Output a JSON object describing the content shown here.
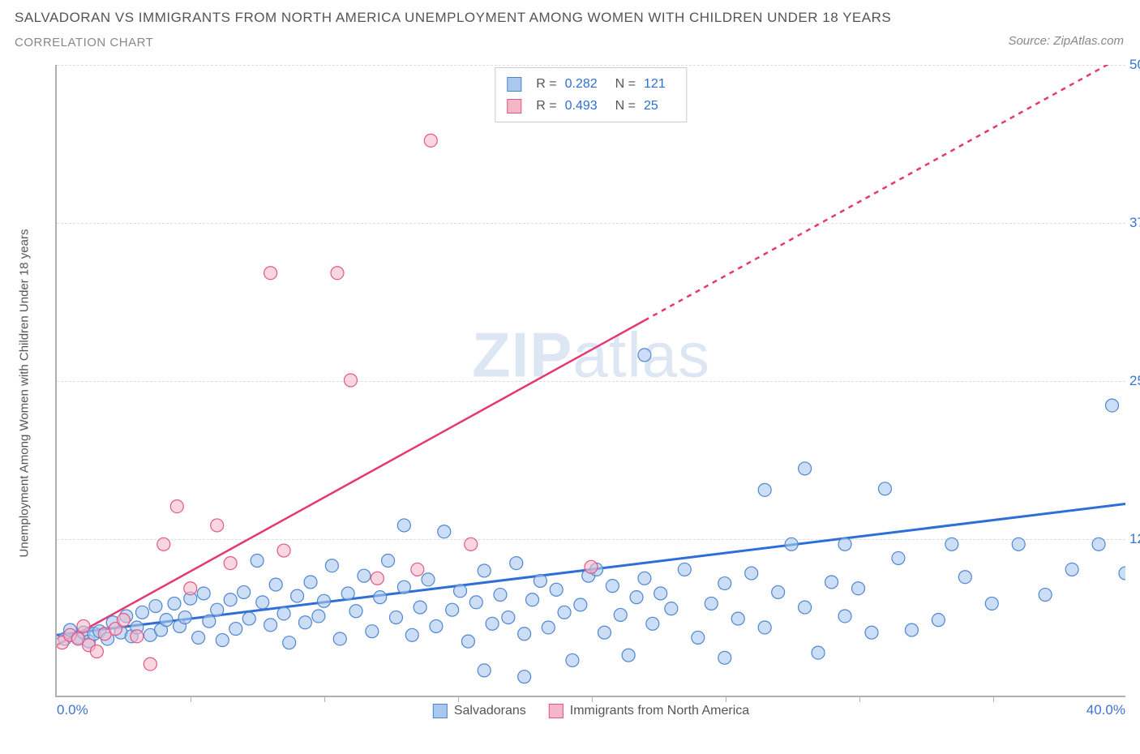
{
  "header": {
    "title": "SALVADORAN VS IMMIGRANTS FROM NORTH AMERICA UNEMPLOYMENT AMONG WOMEN WITH CHILDREN UNDER 18 YEARS",
    "subtitle": "CORRELATION CHART",
    "source": "Source: ZipAtlas.com"
  },
  "chart": {
    "type": "scatter",
    "y_axis_label": "Unemployment Among Women with Children Under 18 years",
    "x_min": 0,
    "x_max": 40,
    "y_min": 0,
    "y_max": 50,
    "x_min_label": "0.0%",
    "x_max_label": "40.0%",
    "y_ticks": [
      {
        "val": 12.5,
        "label": "12.5%"
      },
      {
        "val": 25.0,
        "label": "25.0%"
      },
      {
        "val": 37.5,
        "label": "37.5%"
      },
      {
        "val": 50.0,
        "label": "50.0%"
      }
    ],
    "x_tick_vals": [
      5,
      10,
      15,
      20,
      25,
      30,
      35
    ],
    "grid_color": "#dddddd",
    "axis_color": "#b0b0b0",
    "background_color": "#ffffff",
    "marker_radius": 8,
    "marker_stroke_width": 1.2,
    "series": [
      {
        "name": "Salvadorans",
        "fill": "#a9c8ee",
        "stroke": "#4f86d0",
        "fill_opacity": 0.6,
        "regression": {
          "slope": 0.26,
          "intercept": 4.8,
          "color": "#2d6fd6",
          "width": 3,
          "dash_after_x": 40
        },
        "R": "0.282",
        "N": "121",
        "points": [
          [
            0.3,
            4.5
          ],
          [
            0.5,
            5.2
          ],
          [
            0.8,
            4.6
          ],
          [
            1.0,
            5.0
          ],
          [
            1.2,
            4.3
          ],
          [
            1.4,
            4.9
          ],
          [
            1.6,
            5.1
          ],
          [
            1.9,
            4.5
          ],
          [
            2.1,
            5.8
          ],
          [
            2.4,
            5.0
          ],
          [
            2.6,
            6.3
          ],
          [
            2.8,
            4.7
          ],
          [
            3.0,
            5.4
          ],
          [
            3.2,
            6.6
          ],
          [
            3.5,
            4.8
          ],
          [
            3.7,
            7.1
          ],
          [
            3.9,
            5.2
          ],
          [
            4.1,
            6.0
          ],
          [
            4.4,
            7.3
          ],
          [
            4.6,
            5.5
          ],
          [
            4.8,
            6.2
          ],
          [
            5.0,
            7.7
          ],
          [
            5.3,
            4.6
          ],
          [
            5.5,
            8.1
          ],
          [
            5.7,
            5.9
          ],
          [
            6.0,
            6.8
          ],
          [
            6.2,
            4.4
          ],
          [
            6.5,
            7.6
          ],
          [
            6.7,
            5.3
          ],
          [
            7.0,
            8.2
          ],
          [
            7.2,
            6.1
          ],
          [
            7.5,
            10.7
          ],
          [
            7.7,
            7.4
          ],
          [
            8.0,
            5.6
          ],
          [
            8.2,
            8.8
          ],
          [
            8.5,
            6.5
          ],
          [
            8.7,
            4.2
          ],
          [
            9.0,
            7.9
          ],
          [
            9.3,
            5.8
          ],
          [
            9.5,
            9.0
          ],
          [
            9.8,
            6.3
          ],
          [
            10.0,
            7.5
          ],
          [
            10.3,
            10.3
          ],
          [
            10.6,
            4.5
          ],
          [
            10.9,
            8.1
          ],
          [
            11.2,
            6.7
          ],
          [
            11.5,
            9.5
          ],
          [
            11.8,
            5.1
          ],
          [
            12.1,
            7.8
          ],
          [
            12.4,
            10.7
          ],
          [
            12.7,
            6.2
          ],
          [
            13.0,
            8.6
          ],
          [
            13.0,
            13.5
          ],
          [
            13.3,
            4.8
          ],
          [
            13.6,
            7.0
          ],
          [
            13.9,
            9.2
          ],
          [
            14.2,
            5.5
          ],
          [
            14.5,
            13.0
          ],
          [
            14.8,
            6.8
          ],
          [
            15.1,
            8.3
          ],
          [
            15.4,
            4.3
          ],
          [
            15.7,
            7.4
          ],
          [
            16.0,
            2.0
          ],
          [
            16.0,
            9.9
          ],
          [
            16.3,
            5.7
          ],
          [
            16.6,
            8.0
          ],
          [
            16.9,
            6.2
          ],
          [
            17.2,
            10.5
          ],
          [
            17.5,
            1.5
          ],
          [
            17.5,
            4.9
          ],
          [
            17.8,
            7.6
          ],
          [
            18.1,
            9.1
          ],
          [
            18.4,
            5.4
          ],
          [
            18.7,
            8.4
          ],
          [
            19.0,
            6.6
          ],
          [
            19.3,
            2.8
          ],
          [
            19.6,
            7.2
          ],
          [
            19.9,
            9.5
          ],
          [
            20.2,
            10.0
          ],
          [
            20.5,
            5.0
          ],
          [
            20.8,
            8.7
          ],
          [
            21.1,
            6.4
          ],
          [
            21.4,
            3.2
          ],
          [
            21.7,
            7.8
          ],
          [
            22.0,
            27.0
          ],
          [
            22.0,
            9.3
          ],
          [
            22.3,
            5.7
          ],
          [
            22.6,
            8.1
          ],
          [
            23.0,
            6.9
          ],
          [
            23.5,
            10.0
          ],
          [
            24.0,
            4.6
          ],
          [
            24.5,
            7.3
          ],
          [
            25.0,
            3.0
          ],
          [
            25.0,
            8.9
          ],
          [
            25.5,
            6.1
          ],
          [
            26.0,
            9.7
          ],
          [
            26.5,
            16.3
          ],
          [
            26.5,
            5.4
          ],
          [
            27.0,
            8.2
          ],
          [
            27.5,
            12.0
          ],
          [
            28.0,
            18.0
          ],
          [
            28.0,
            7.0
          ],
          [
            28.5,
            3.4
          ],
          [
            29.0,
            9.0
          ],
          [
            29.5,
            12.0
          ],
          [
            29.5,
            6.3
          ],
          [
            30.0,
            8.5
          ],
          [
            30.5,
            5.0
          ],
          [
            31.0,
            16.4
          ],
          [
            31.5,
            10.9
          ],
          [
            32.0,
            5.2
          ],
          [
            33.0,
            6.0
          ],
          [
            33.5,
            12.0
          ],
          [
            34.0,
            9.4
          ],
          [
            35.0,
            7.3
          ],
          [
            36.0,
            12.0
          ],
          [
            37.0,
            8.0
          ],
          [
            38.0,
            10.0
          ],
          [
            39.0,
            12.0
          ],
          [
            39.5,
            23.0
          ],
          [
            40.0,
            9.7
          ]
        ]
      },
      {
        "name": "Immigrants from North America",
        "fill": "#f4b7c8",
        "stroke": "#e55585",
        "fill_opacity": 0.55,
        "regression": {
          "slope": 1.17,
          "intercept": 4.0,
          "color": "#e63772",
          "width": 2.5,
          "dash_after_x": 22
        },
        "R": "0.493",
        "N": "25",
        "points": [
          [
            0.2,
            4.2
          ],
          [
            0.5,
            4.8
          ],
          [
            0.8,
            4.5
          ],
          [
            1.0,
            5.5
          ],
          [
            1.2,
            4.0
          ],
          [
            1.5,
            3.5
          ],
          [
            1.8,
            4.9
          ],
          [
            2.2,
            5.3
          ],
          [
            2.5,
            6.0
          ],
          [
            3.0,
            4.7
          ],
          [
            3.5,
            2.5
          ],
          [
            4.0,
            12.0
          ],
          [
            4.5,
            15.0
          ],
          [
            5.0,
            8.5
          ],
          [
            6.0,
            13.5
          ],
          [
            6.5,
            10.5
          ],
          [
            8.0,
            33.5
          ],
          [
            8.5,
            11.5
          ],
          [
            10.5,
            33.5
          ],
          [
            11.0,
            25.0
          ],
          [
            12.0,
            9.3
          ],
          [
            13.5,
            10.0
          ],
          [
            14.0,
            44.0
          ],
          [
            15.5,
            12.0
          ],
          [
            20.0,
            10.2
          ]
        ]
      }
    ],
    "bottom_legend": [
      {
        "label": "Salvadorans",
        "fill": "#a9c8ee",
        "stroke": "#4f86d0"
      },
      {
        "label": "Immigrants from North America",
        "fill": "#f4b7c8",
        "stroke": "#e55585"
      }
    ]
  },
  "watermark": {
    "bold": "ZIP",
    "rest": "atlas"
  }
}
